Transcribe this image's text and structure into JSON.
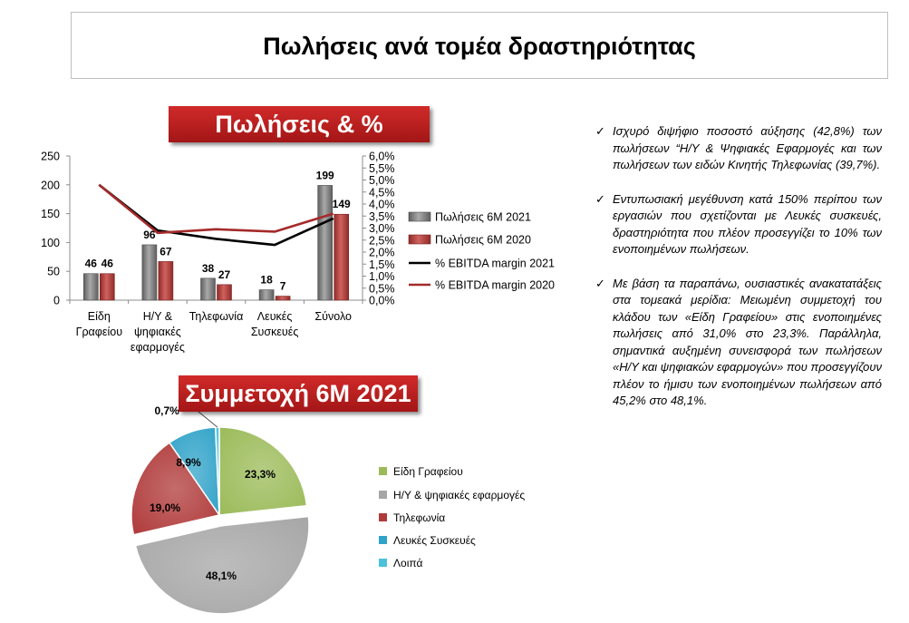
{
  "page_title": "Πωλήσεις ανά τομέα δραστηριότητας",
  "chart1_title": "Πωλήσεις & % EBITDA",
  "chart2_title": "Συμμετοχή 6Μ 2021",
  "colors": {
    "sales_2021": "#7f7f7f",
    "sales_2020": "#c0504d",
    "margin_2021": "#000000",
    "margin_2020": "#a52a2a",
    "pie_office": "#9bbb59",
    "pie_pc": "#a6a6a6",
    "pie_phone": "#b03a3a",
    "pie_white": "#31a3c9",
    "pie_other": "#4bc2dc"
  },
  "chart_data": [
    {
      "type": "bar",
      "title": "Πωλήσεις & % EBITDA",
      "categories": [
        [
          "Είδη",
          "Γραφείου"
        ],
        [
          "Η/Υ &",
          "ψηφιακές",
          "εφαρμογές"
        ],
        [
          "Τηλεφωνία"
        ],
        [
          "Λευκές",
          "Συσκευές"
        ],
        [
          "Σύνολο"
        ]
      ],
      "series": [
        {
          "name": "Πωλήσεις 6Μ 2021",
          "kind": "bar",
          "axis": "left",
          "values": [
            46,
            96,
            38,
            18,
            199
          ],
          "labels": [
            "46",
            "96",
            "38",
            "18",
            "199"
          ]
        },
        {
          "name": "Πωλήσεις 6Μ 2020",
          "kind": "bar",
          "axis": "left",
          "values": [
            46,
            67,
            27,
            7,
            149
          ],
          "labels": [
            "46",
            "67",
            "27",
            "7",
            "149"
          ]
        },
        {
          "name": "% EBITDA margin  2021",
          "kind": "line",
          "axis": "right",
          "values": [
            4.8,
            2.9,
            2.55,
            2.3,
            3.4
          ]
        },
        {
          "name": "% EBITDA margin  2020",
          "kind": "line",
          "axis": "right",
          "values": [
            4.8,
            2.8,
            2.95,
            2.85,
            3.6
          ]
        }
      ],
      "ylim": [
        0,
        250
      ],
      "y_ticks": [
        "0",
        "50",
        "100",
        "150",
        "200",
        "250"
      ],
      "y2lim": [
        0,
        6
      ],
      "y2_ticks": [
        "0,0%",
        "0,5%",
        "1,0%",
        "1,5%",
        "2,0%",
        "2,5%",
        "3,0%",
        "3,5%",
        "4,0%",
        "4,5%",
        "5,0%",
        "5,5%",
        "6,0%"
      ],
      "grid": false,
      "legend_position": "right"
    },
    {
      "type": "pie",
      "title": "Συμμετοχή 6Μ 2021",
      "slices": [
        {
          "name": "Είδη Γραφείου",
          "value": 23.3,
          "label": "23,3%",
          "exploded": false
        },
        {
          "name": "Η/Υ & ψηφιακές εφαρμογές",
          "value": 48.1,
          "label": "48,1%",
          "exploded": true
        },
        {
          "name": "Τηλεφωνία",
          "value": 19.0,
          "label": "19,0%",
          "exploded": false
        },
        {
          "name": "Λευκές Συσκευές",
          "value": 8.9,
          "label": "8,9%",
          "exploded": false
        },
        {
          "name": "Λοιπά",
          "value": 0.7,
          "label": "0,7%",
          "exploded": false
        }
      ],
      "legend_position": "right"
    }
  ],
  "bullets": [
    "Ισχυρό διψήφιο ποσοστό αύξησης (42,8%) των πωλήσεων “Η/Υ & Ψηφιακές Εφαρμογές και των πωλήσεων των ειδών Κινητής Τηλεφωνίας (39,7%).",
    "Εντυπωσιακή μεγέθυνση κατά 150% περίπου των εργασιών που σχετίζονται με Λευκές συσκευές, δραστηριότητα που πλέον προσεγγίζει το 10% των ενοποιημένων πωλήσεων.",
    "Με βάση τα παραπάνω, ουσιαστικές ανακατατάξεις στα τομεακά μερίδια: Μειωμένη συμμετοχή του κλάδου των «Είδη Γραφείου» στις ενοποιημένες πωλήσεις από 31,0% στο 23,3%. Παράλληλα, σημαντικά αυξημένη συνεισφορά των πωλήσεων «Η/Υ και ψηφιακών εφαρμογών» που προσεγγίζουν πλέον το ήμισυ των ενοποιημένων πωλήσεων από 45,2% στο 48,1%."
  ],
  "check_mark": "✓"
}
